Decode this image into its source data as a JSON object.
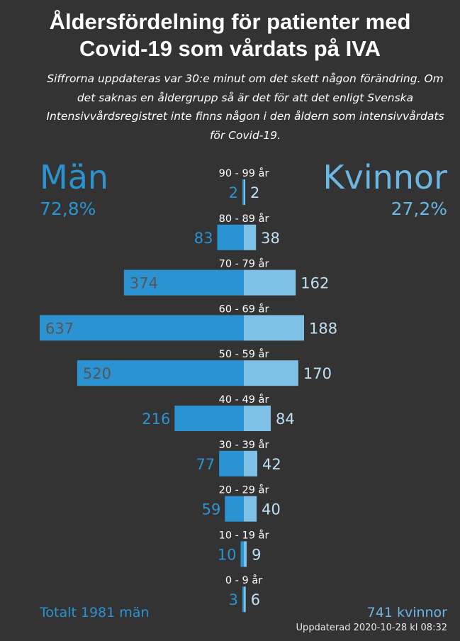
{
  "title_line1": "Åldersfördelning för patienter med",
  "title_line2": "Covid-19 som vårdats på IVA",
  "subtitle_lines": [
    "Siffrorna uppdateras var 30:e minut om det skett någon förändring. Om",
    "det saknas en åldergrupp så är det för att det enligt Svenska",
    "Intensivvårdsregistret inte finns någon i den åldern som intensivvårdats",
    "för Covid-19."
  ],
  "men_label": "Män",
  "women_label": "Kvinnor",
  "men_pct": "72,8%",
  "women_pct": "27,2%",
  "total_men": "Totalt 1981 män",
  "total_women": "741 kvinnor",
  "updated": "Uppdaterad 2020-10-28 kl 08:32",
  "colors": {
    "men": "#2b93d2",
    "women": "#7fc0e6",
    "background": "#333333"
  },
  "chart_data": {
    "type": "bar",
    "orientation": "horizontal-butterfly",
    "categories": [
      "90 - 99 år",
      "80 - 89 år",
      "70 - 79 år",
      "60 - 69 år",
      "50 - 59 år",
      "40 - 49 år",
      "30 - 39 år",
      "20 - 29 år",
      "10 - 19 år",
      "0 - 9 år"
    ],
    "series": [
      {
        "name": "Män",
        "values": [
          2,
          83,
          374,
          637,
          520,
          216,
          77,
          59,
          10,
          3
        ]
      },
      {
        "name": "Kvinnor",
        "values": [
          2,
          38,
          162,
          188,
          170,
          84,
          42,
          40,
          9,
          6
        ]
      }
    ]
  }
}
